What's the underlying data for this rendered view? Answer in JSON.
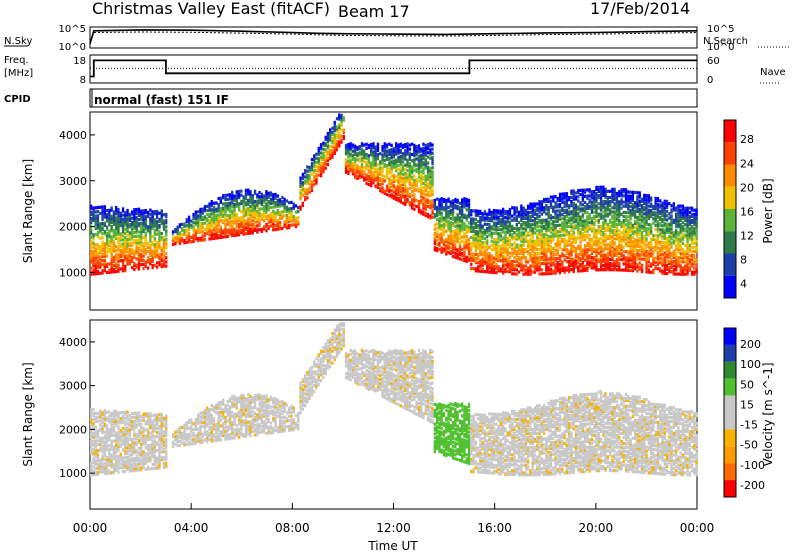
{
  "header": {
    "title": "Christmas Valley East (fitACF)",
    "beam": "Beam 17",
    "date": "17/Feb/2014"
  },
  "colors": {
    "power": [
      "#0000ff",
      "#1e3fa8",
      "#2f7a4a",
      "#5cb33a",
      "#f0c000",
      "#ff8c00",
      "#ff4000",
      "#ff0000"
    ],
    "velocity": [
      "#ff0000",
      "#ff6a00",
      "#ff9a00",
      "#f7b200",
      "#c8c8c8",
      "#c8c8c8",
      "#50c030",
      "#2e8a2e",
      "#1e3fa8",
      "#0000ff"
    ]
  },
  "chart_data": [
    {
      "type": "line",
      "panel": "noise",
      "left_label": "N.Sky",
      "right_label": "N.Search",
      "left_ticks": [
        "10^5",
        "10^0"
      ],
      "right_ticks": [
        "10^5",
        "10^0"
      ],
      "x_range": [
        0,
        24
      ],
      "series": [
        {
          "name": "N.Sky",
          "x": [
            0,
            0.15,
            2,
            4,
            6,
            8,
            9,
            10,
            12,
            14,
            16,
            18,
            20,
            22,
            24
          ],
          "y": [
            0.2,
            0.82,
            0.86,
            0.85,
            0.8,
            0.74,
            0.7,
            0.68,
            0.66,
            0.65,
            0.68,
            0.72,
            0.74,
            0.78,
            0.82
          ]
        },
        {
          "name": "N.Search",
          "x": [
            0,
            0.15,
            2,
            4,
            6,
            8,
            9,
            10,
            12,
            14,
            16,
            18,
            20,
            22,
            24
          ],
          "y": [
            0.2,
            0.74,
            0.76,
            0.75,
            0.71,
            0.66,
            0.63,
            0.6,
            0.58,
            0.57,
            0.6,
            0.64,
            0.66,
            0.7,
            0.74
          ]
        }
      ]
    },
    {
      "type": "line",
      "panel": "frequency",
      "left_label_1": "Freq.",
      "left_label_2": "[MHz]",
      "right_label": "Nave",
      "cpid_label": "CPID",
      "cpid_value": "normal (fast) 151 IF",
      "left_ticks": [
        "18",
        "8"
      ],
      "right_ticks": [
        "60",
        "0"
      ],
      "x_range": [
        0,
        24
      ],
      "series": [
        {
          "name": "Freq.",
          "x": [
            0,
            0.15,
            0.15,
            3,
            3,
            15,
            15,
            24
          ],
          "y": [
            9,
            9,
            16.5,
            16.5,
            10.5,
            10.5,
            16.5,
            16.5
          ]
        },
        {
          "name": "Nave",
          "x": [
            0,
            24
          ],
          "y": [
            34,
            34
          ]
        }
      ]
    },
    {
      "type": "heatmap",
      "panel": "power",
      "ylabel": "Slant Range [km]",
      "colorbar_label": "Power [dB]",
      "colorbar_ticks": [
        "28",
        "24",
        "20",
        "16",
        "12",
        "8",
        "4"
      ],
      "yticks": [
        "4000",
        "3000",
        "2000",
        "1000"
      ],
      "ylim": [
        180,
        4500
      ],
      "xlim": [
        0,
        24
      ]
    },
    {
      "type": "heatmap",
      "panel": "velocity",
      "ylabel": "Slant Range [km]",
      "colorbar_label": "Velocity [m s^-1]",
      "colorbar_ticks": [
        "200",
        "100",
        "50",
        "15",
        "-15",
        "-50",
        "-100",
        "-200"
      ],
      "yticks": [
        "4000",
        "3000",
        "2000",
        "1000"
      ],
      "ylim": [
        180,
        4500
      ],
      "xlim": [
        0,
        24
      ]
    }
  ],
  "xaxis": {
    "xlabel": "Time UT",
    "ticks": [
      "00:00",
      "04:00",
      "08:00",
      "12:00",
      "16:00",
      "20:00",
      "00:00"
    ]
  }
}
